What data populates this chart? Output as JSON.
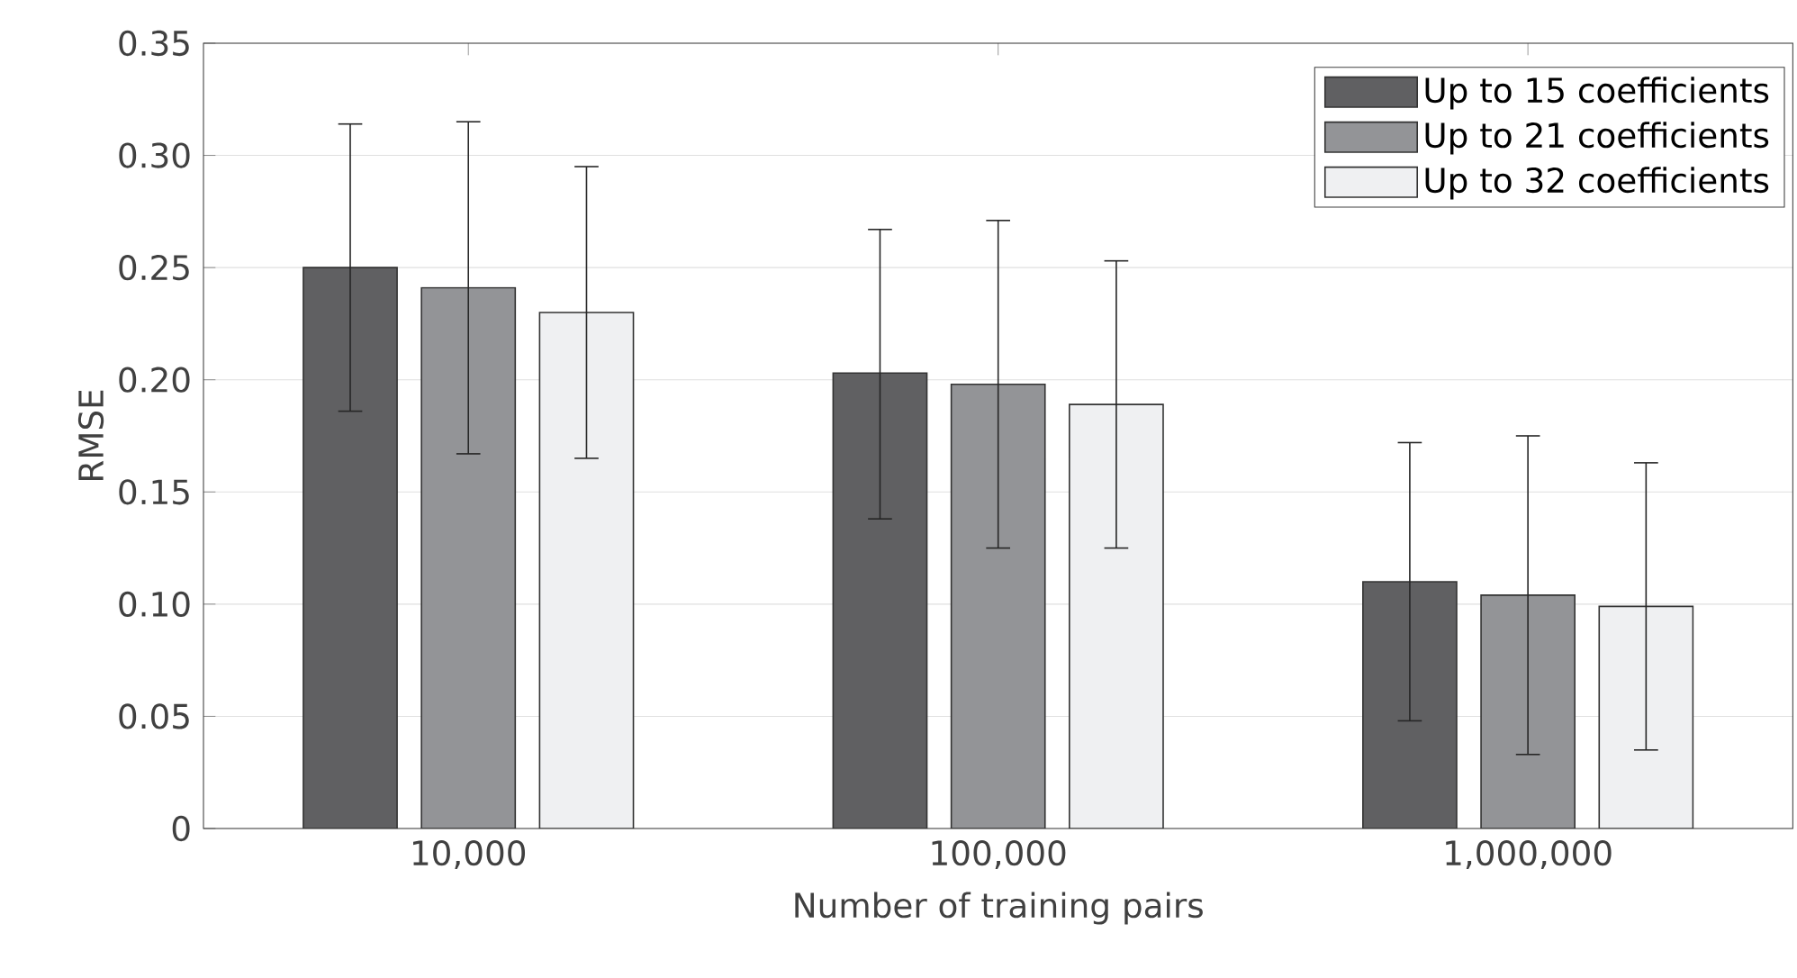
{
  "chart_data": {
    "type": "bar",
    "xlabel": "Number of training pairs",
    "ylabel": "RMSE",
    "categories": [
      "10,000",
      "100,000",
      "1,000,000"
    ],
    "series": [
      {
        "name": "Up to 15 coefficients",
        "color": "#606062",
        "values": [
          0.25,
          0.203,
          0.11
        ],
        "errors": [
          [
            0.186,
            0.314
          ],
          [
            0.138,
            0.267
          ],
          [
            0.048,
            0.172
          ]
        ]
      },
      {
        "name": "Up to 21 coefficients",
        "color": "#939497",
        "values": [
          0.241,
          0.198,
          0.104
        ],
        "errors": [
          [
            0.167,
            0.315
          ],
          [
            0.125,
            0.271
          ],
          [
            0.033,
            0.175
          ]
        ]
      },
      {
        "name": "Up to 32 coefficients",
        "color": "#eff0f2",
        "values": [
          0.23,
          0.189,
          0.099
        ],
        "errors": [
          [
            0.165,
            0.295
          ],
          [
            0.125,
            0.253
          ],
          [
            0.035,
            0.163
          ]
        ]
      }
    ],
    "ylim": [
      0,
      0.35
    ],
    "yticks": [
      0,
      {
        "value": 0.05,
        "label": "0.05"
      },
      {
        "value": 0.1,
        "label": "0.10"
      },
      {
        "value": 0.15,
        "label": "0.15"
      },
      {
        "value": 0.2,
        "label": "0.20"
      },
      {
        "value": 0.25,
        "label": "0.25"
      },
      {
        "value": 0.3,
        "label": "0.30"
      },
      {
        "value": 0.35,
        "label": "0.35"
      }
    ],
    "grid": "y",
    "legend": "top right"
  }
}
